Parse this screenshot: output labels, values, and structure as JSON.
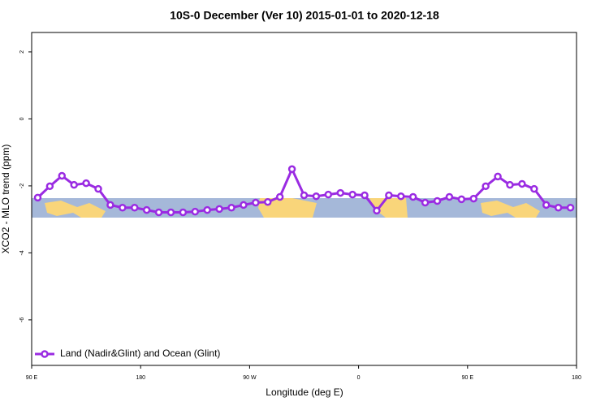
{
  "chart_data": {
    "type": "line",
    "title": "10S-0 December (Ver 10)   2015-01-01 to 2020-12-18",
    "x_label": "Longitude (deg E)",
    "y_label": "XCO2 - MLO trend (ppm)",
    "x": [
      95,
      105,
      115,
      125,
      135,
      145,
      155,
      165,
      175,
      185,
      195,
      205,
      215,
      225,
      235,
      245,
      255,
      265,
      275,
      285,
      295,
      305,
      315,
      325,
      335,
      345,
      355,
      365,
      375,
      385,
      395,
      405,
      415,
      425,
      435,
      445,
      455,
      465,
      475,
      485,
      495,
      505,
      515,
      525,
      535
    ],
    "series": [
      {
        "name": "Land (Nadir&Glint) and Ocean (Glint)",
        "color": "#9a2be2",
        "values": [
          -2.35,
          -2.01,
          -1.7,
          -1.97,
          -1.92,
          -2.09,
          -2.57,
          -2.65,
          -2.65,
          -2.72,
          -2.79,
          -2.79,
          -2.79,
          -2.77,
          -2.72,
          -2.69,
          -2.65,
          -2.57,
          -2.5,
          -2.48,
          -2.33,
          -1.5,
          -2.28,
          -2.31,
          -2.26,
          -2.21,
          -2.26,
          -2.28,
          -2.74,
          -2.28,
          -2.31,
          -2.33,
          -2.5,
          -2.45,
          -2.33,
          -2.4,
          -2.38,
          -2.01,
          -1.72,
          -1.97,
          -1.94,
          -2.09,
          -2.57,
          -2.65,
          -2.65
        ]
      }
    ],
    "xlim": [
      90,
      540
    ],
    "xticks": [
      {
        "value": 90,
        "label": "90 E"
      },
      180,
      {
        "value": 270,
        "label": "90 W"
      },
      {
        "value": 360,
        "label": "0"
      },
      {
        "value": 450,
        "label": "90 E"
      },
      {
        "value": 540,
        "label": "180"
      }
    ],
    "ylim": [
      -7.36,
      2.58
    ],
    "yticks": [
      2,
      0,
      -2,
      -4,
      -6
    ],
    "legend": "bottom-left"
  }
}
